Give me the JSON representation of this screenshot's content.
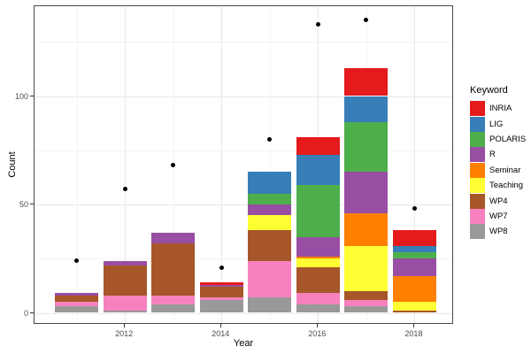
{
  "chart_data": {
    "type": "bar",
    "stacked": true,
    "title": "",
    "xlabel": "Year",
    "ylabel": "Count",
    "legend_title": "Keyword",
    "legend_position": "right",
    "grid": true,
    "ylim": [
      0,
      141
    ],
    "yticks": [
      0,
      50,
      100
    ],
    "yticks_minor": [
      25,
      75,
      125
    ],
    "xticks": [
      2012,
      2014,
      2016,
      2018
    ],
    "xticks_minor": [
      2011,
      2013,
      2015,
      2017
    ],
    "x": [
      2011,
      2012,
      2013,
      2014,
      2015,
      2016,
      2017,
      2018
    ],
    "stack_order_bottom_to_top": [
      "WP8",
      "WP7",
      "WP4",
      "Teaching",
      "Seminar",
      "R",
      "POLARIS",
      "LIG",
      "INRIA"
    ],
    "series": [
      {
        "name": "INRIA",
        "color": "#E41A1C",
        "values": [
          0,
          0,
          0,
          1,
          0,
          8,
          13,
          7
        ]
      },
      {
        "name": "LIG",
        "color": "#377EB8",
        "values": [
          0,
          0,
          0,
          0,
          10,
          14,
          12,
          3
        ]
      },
      {
        "name": "POLARIS",
        "color": "#4DAF4A",
        "values": [
          0,
          0,
          0,
          0,
          5,
          24,
          23,
          3
        ]
      },
      {
        "name": "R",
        "color": "#984EA3",
        "values": [
          1,
          2,
          5,
          1,
          5,
          9,
          19,
          8
        ]
      },
      {
        "name": "Seminar",
        "color": "#FF7F00",
        "values": [
          0,
          0,
          0,
          0,
          0,
          1,
          15,
          12
        ]
      },
      {
        "name": "Teaching",
        "color": "#FFFF33",
        "values": [
          0,
          0,
          0,
          0,
          7,
          4,
          21,
          4
        ]
      },
      {
        "name": "WP4",
        "color": "#A65628",
        "values": [
          3,
          14,
          24,
          5,
          14,
          12,
          4,
          1
        ]
      },
      {
        "name": "WP7",
        "color": "#F781BF",
        "values": [
          2,
          7,
          4,
          1,
          17,
          5,
          3,
          0
        ]
      },
      {
        "name": "WP8",
        "color": "#999999",
        "values": [
          3,
          1,
          4,
          6,
          7,
          4,
          3,
          0
        ]
      }
    ],
    "bar_totals": [
      9,
      24,
      37,
      14,
      65,
      81,
      113,
      38
    ],
    "scatter_overlay": {
      "marker": "point",
      "color": "#000000",
      "values": [
        24,
        57,
        68,
        21,
        80,
        133,
        135,
        48
      ]
    }
  }
}
